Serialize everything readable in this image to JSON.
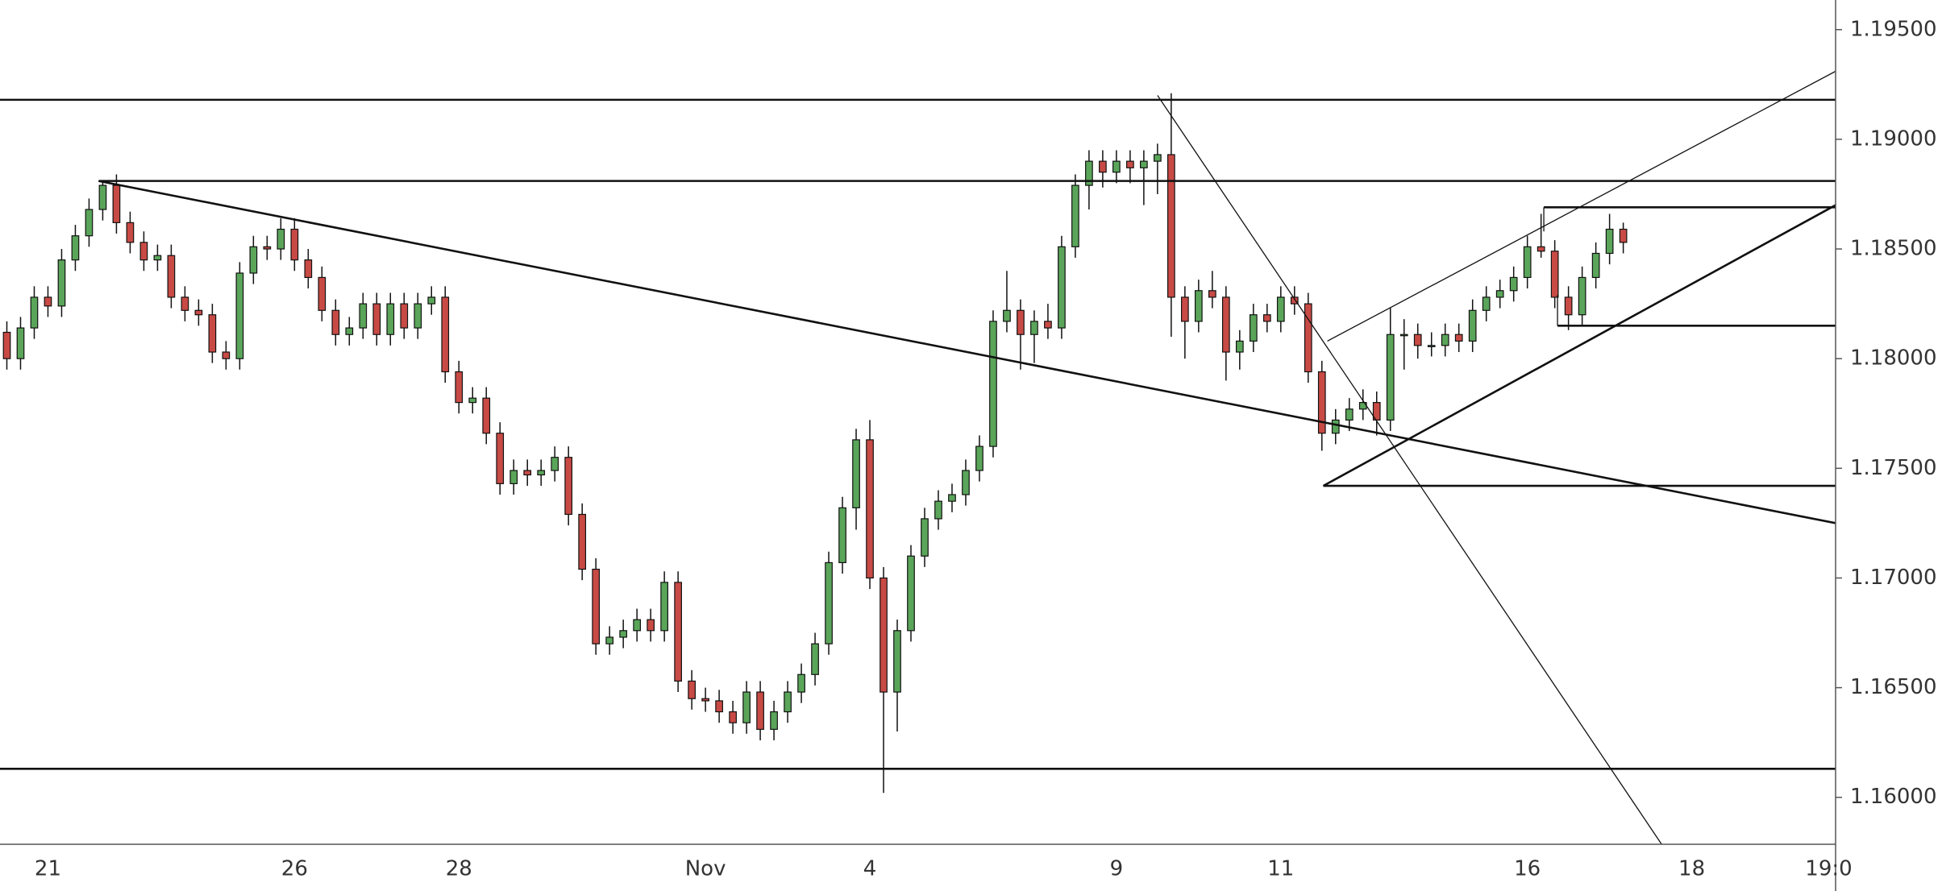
{
  "chart_data": {
    "type": "candlestick",
    "categories": [
      null,
      null,
      null,
      "21",
      null,
      null,
      null,
      null,
      null,
      null,
      null,
      null,
      null,
      null,
      null,
      null,
      null,
      null,
      null,
      null,
      null,
      "26",
      null,
      null,
      null,
      null,
      null,
      null,
      null,
      null,
      null,
      null,
      null,
      "28",
      null,
      null,
      null,
      null,
      null,
      null,
      null,
      null,
      null,
      null,
      null,
      null,
      null,
      null,
      null,
      null,
      null,
      "Nov",
      null,
      null,
      null,
      null,
      null,
      null,
      null,
      null,
      null,
      null,
      null,
      "4",
      null,
      null,
      null,
      null,
      null,
      null,
      null,
      null,
      null,
      null,
      null,
      null,
      null,
      null,
      null,
      null,
      null,
      "9",
      null,
      null,
      null,
      null,
      null,
      null,
      null,
      null,
      null,
      null,
      null,
      "11",
      null,
      null,
      null,
      null,
      null,
      null,
      null,
      null,
      null,
      null,
      null,
      null,
      null,
      null,
      null,
      null,
      null,
      "16",
      null,
      null,
      null,
      null,
      null,
      null,
      null,
      null,
      null,
      null,
      null,
      "18",
      null,
      null,
      null,
      null,
      null,
      null,
      null,
      null,
      null,
      "19:0"
    ],
    "open": [
      1.1812,
      1.18,
      1.1814,
      1.1828,
      1.1824,
      1.1845,
      1.1856,
      1.1868,
      1.1879,
      1.1862,
      1.1853,
      1.1845,
      1.1847,
      1.1828,
      1.1822,
      1.182,
      1.1803,
      1.18,
      1.1839,
      1.1851,
      1.185,
      1.1859,
      1.1845,
      1.1837,
      1.1822,
      1.1811,
      1.1814,
      1.1825,
      1.1811,
      1.1825,
      1.1814,
      1.1825,
      1.1828,
      1.1794,
      1.178,
      1.1782,
      1.1766,
      1.1743,
      1.1749,
      1.1747,
      1.1749,
      1.1755,
      1.1729,
      1.1704,
      1.167,
      1.1673,
      1.1676,
      1.1681,
      1.1676,
      1.1698,
      1.1653,
      1.1645,
      1.1644,
      1.1639,
      1.1634,
      1.1648,
      1.1631,
      1.1639,
      1.1648,
      1.1656,
      1.167,
      1.1707,
      1.1732,
      1.1763,
      1.17,
      1.1648,
      1.1676,
      1.171,
      1.1727,
      1.1735,
      1.1738,
      1.1749,
      1.176,
      1.1817,
      1.1822,
      1.1811,
      1.1817,
      1.1814,
      1.1851,
      1.1879,
      1.189,
      1.1885,
      1.189,
      1.1887,
      1.189,
      1.1893,
      1.1828,
      1.1817,
      1.1831,
      1.1828,
      1.1803,
      1.1808,
      1.182,
      1.1817,
      1.1828,
      1.1825,
      1.1794,
      1.1766,
      1.1772,
      1.1777,
      1.178,
      1.1772,
      1.1811,
      1.1811,
      1.1806,
      1.1806,
      1.1811,
      1.1808,
      1.1822,
      1.1828,
      1.1831,
      1.1837,
      1.1851,
      1.1849,
      1.1828,
      1.182,
      1.1837,
      1.1848,
      1.1859,
      null,
      null,
      null,
      null,
      null,
      null,
      null,
      null,
      null,
      null,
      null,
      null,
      null,
      null,
      null
    ],
    "high": [
      1.1817,
      1.1819,
      1.1833,
      1.1833,
      1.185,
      1.1861,
      1.1873,
      1.1881,
      1.1884,
      1.1867,
      1.1858,
      1.1852,
      1.1852,
      1.1833,
      1.1827,
      1.1825,
      1.1808,
      1.1844,
      1.1856,
      1.1856,
      1.1864,
      1.1864,
      1.185,
      1.1842,
      1.1827,
      1.1819,
      1.183,
      1.183,
      1.183,
      1.183,
      1.183,
      1.1833,
      1.1833,
      1.1799,
      1.1787,
      1.1787,
      1.1771,
      1.1754,
      1.1754,
      1.1754,
      1.176,
      1.176,
      1.1734,
      1.1709,
      1.1678,
      1.1681,
      1.1686,
      1.1686,
      1.1703,
      1.1703,
      1.1658,
      1.165,
      1.1649,
      1.1644,
      1.1653,
      1.1653,
      1.1644,
      1.1653,
      1.1661,
      1.1675,
      1.1712,
      1.1737,
      1.1768,
      1.1772,
      1.1705,
      1.1681,
      1.1715,
      1.1732,
      1.174,
      1.1743,
      1.1754,
      1.1765,
      1.1822,
      1.184,
      1.1827,
      1.1822,
      1.1825,
      1.1856,
      1.1884,
      1.1895,
      1.1895,
      1.1895,
      1.1895,
      1.1895,
      1.1898,
      1.1921,
      1.1833,
      1.1836,
      1.184,
      1.1833,
      1.1813,
      1.1825,
      1.1825,
      1.1833,
      1.1833,
      1.183,
      1.1799,
      1.1777,
      1.1782,
      1.1786,
      1.1785,
      1.1823,
      1.1818,
      1.1816,
      1.1812,
      1.1816,
      1.1816,
      1.1827,
      1.1833,
      1.1836,
      1.1842,
      1.1856,
      1.1866,
      1.1854,
      1.1833,
      1.1842,
      1.1853,
      1.1866,
      1.1862,
      null,
      null,
      null,
      null,
      null,
      null,
      null,
      null,
      null,
      null,
      null,
      null,
      null,
      null,
      null
    ],
    "low": [
      1.1795,
      1.1795,
      1.1809,
      1.1819,
      1.1819,
      1.184,
      1.1851,
      1.1863,
      1.1857,
      1.1848,
      1.184,
      1.184,
      1.1823,
      1.1817,
      1.1815,
      1.1798,
      1.1795,
      1.1795,
      1.1834,
      1.1845,
      1.1845,
      1.184,
      1.1832,
      1.1817,
      1.1806,
      1.1806,
      1.1809,
      1.1806,
      1.1806,
      1.1809,
      1.1809,
      1.182,
      1.1789,
      1.1775,
      1.1775,
      1.1761,
      1.1738,
      1.1738,
      1.1742,
      1.1742,
      1.1744,
      1.1724,
      1.1699,
      1.1665,
      1.1665,
      1.1668,
      1.1671,
      1.1671,
      1.1671,
      1.1648,
      1.164,
      1.1639,
      1.1634,
      1.1629,
      1.1629,
      1.1626,
      1.1626,
      1.1634,
      1.1643,
      1.1651,
      1.1665,
      1.1702,
      1.1722,
      1.1695,
      1.1602,
      1.163,
      1.1671,
      1.1705,
      1.1722,
      1.173,
      1.1733,
      1.1744,
      1.1755,
      1.1812,
      1.1795,
      1.1798,
      1.1809,
      1.1809,
      1.1846,
      1.1868,
      1.1878,
      1.188,
      1.188,
      1.187,
      1.1875,
      1.181,
      1.18,
      1.1812,
      1.1823,
      1.179,
      1.1795,
      1.1803,
      1.1812,
      1.1812,
      1.182,
      1.1789,
      1.1758,
      1.1761,
      1.1767,
      1.1772,
      1.1765,
      1.1767,
      1.1795,
      1.18,
      1.1801,
      1.1801,
      1.1803,
      1.1803,
      1.1817,
      1.1823,
      1.1826,
      1.1832,
      1.1846,
      1.1823,
      1.1813,
      1.1815,
      1.1832,
      1.1843,
      1.1848,
      null,
      null,
      null,
      null,
      null,
      null,
      null,
      null,
      null,
      null,
      null,
      null,
      null,
      null,
      null
    ],
    "close": [
      1.18,
      1.1814,
      1.1828,
      1.1824,
      1.1845,
      1.1856,
      1.1868,
      1.1879,
      1.1862,
      1.1853,
      1.1845,
      1.1847,
      1.1828,
      1.1822,
      1.182,
      1.1803,
      1.18,
      1.1839,
      1.1851,
      1.185,
      1.1859,
      1.1845,
      1.1837,
      1.1822,
      1.1811,
      1.1814,
      1.1825,
      1.1811,
      1.1825,
      1.1814,
      1.1825,
      1.1828,
      1.1794,
      1.178,
      1.1782,
      1.1766,
      1.1743,
      1.1749,
      1.1747,
      1.1749,
      1.1755,
      1.1729,
      1.1704,
      1.167,
      1.1673,
      1.1676,
      1.1681,
      1.1676,
      1.1698,
      1.1653,
      1.1645,
      1.1644,
      1.1639,
      1.1634,
      1.1648,
      1.1631,
      1.1639,
      1.1648,
      1.1656,
      1.167,
      1.1707,
      1.1732,
      1.1763,
      1.17,
      1.1648,
      1.1676,
      1.171,
      1.1727,
      1.1735,
      1.1738,
      1.1749,
      1.176,
      1.1817,
      1.1822,
      1.1811,
      1.1817,
      1.1814,
      1.1851,
      1.1879,
      1.189,
      1.1885,
      1.189,
      1.1887,
      1.189,
      1.1893,
      1.1828,
      1.1817,
      1.1831,
      1.1828,
      1.1803,
      1.1808,
      1.182,
      1.1817,
      1.1828,
      1.1825,
      1.1794,
      1.1766,
      1.1772,
      1.1777,
      1.178,
      1.1772,
      1.1811,
      1.1811,
      1.1806,
      1.1806,
      1.1811,
      1.1808,
      1.1822,
      1.1828,
      1.1831,
      1.1837,
      1.1851,
      1.1849,
      1.1828,
      1.182,
      1.1837,
      1.1848,
      1.1859,
      1.1853,
      null,
      null,
      null,
      null,
      null,
      null,
      null,
      null,
      null,
      null,
      null,
      null,
      null,
      null,
      null
    ],
    "up_color": "#5aa55a",
    "down_color": "#c84a45",
    "ylim": [
      1.15786,
      1.19635
    ],
    "yticks": [
      {
        "value": 1.16,
        "label": "1.16000"
      },
      {
        "value": 1.165,
        "label": "1.16500"
      },
      {
        "value": 1.17,
        "label": "1.17000"
      },
      {
        "value": 1.175,
        "label": "1.17500"
      },
      {
        "value": 1.18,
        "label": "1.18000"
      },
      {
        "value": 1.185,
        "label": "1.18500"
      },
      {
        "value": 1.19,
        "label": "1.19000"
      },
      {
        "value": 1.195,
        "label": "1.19500"
      }
    ],
    "segments": [
      {
        "start": [
          -0.5,
          1.1918
        ],
        "end": [
          133.5,
          1.1918
        ],
        "weight": "bold"
      },
      {
        "start": [
          6.7,
          1.1881
        ],
        "end": [
          133.5,
          1.1881
        ],
        "weight": "bold"
      },
      {
        "start": [
          -0.5,
          1.1613
        ],
        "end": [
          133.5,
          1.1613
        ],
        "weight": "bold"
      },
      {
        "start": [
          96.1,
          1.1742
        ],
        "end": [
          133.5,
          1.1742
        ],
        "weight": "bold"
      },
      {
        "start": [
          112.2,
          1.1869
        ],
        "end": [
          133.5,
          1.1869
        ],
        "weight": "bold"
      },
      {
        "start": [
          112.2,
          1.1869
        ],
        "end": [
          112.2,
          1.1858
        ],
        "weight": "thin"
      },
      {
        "start": [
          113.2,
          1.1815
        ],
        "end": [
          133.5,
          1.1815
        ],
        "weight": "bold"
      },
      {
        "start": [
          113.2,
          1.1829
        ],
        "end": [
          113.2,
          1.1815
        ],
        "weight": "thin"
      },
      {
        "start": [
          6.7,
          1.1881
        ],
        "end": [
          133.5,
          1.1725
        ],
        "weight": "bold"
      },
      {
        "start": [
          84.0,
          1.192
        ],
        "end": [
          120.8,
          1.15786
        ],
        "weight": "thin"
      },
      {
        "start": [
          96.4,
          1.1808
        ],
        "end": [
          133.5,
          1.1931
        ],
        "weight": "thin"
      },
      {
        "start": [
          96.1,
          1.1742
        ],
        "end": [
          133.5,
          1.187
        ],
        "weight": "bold"
      }
    ]
  }
}
